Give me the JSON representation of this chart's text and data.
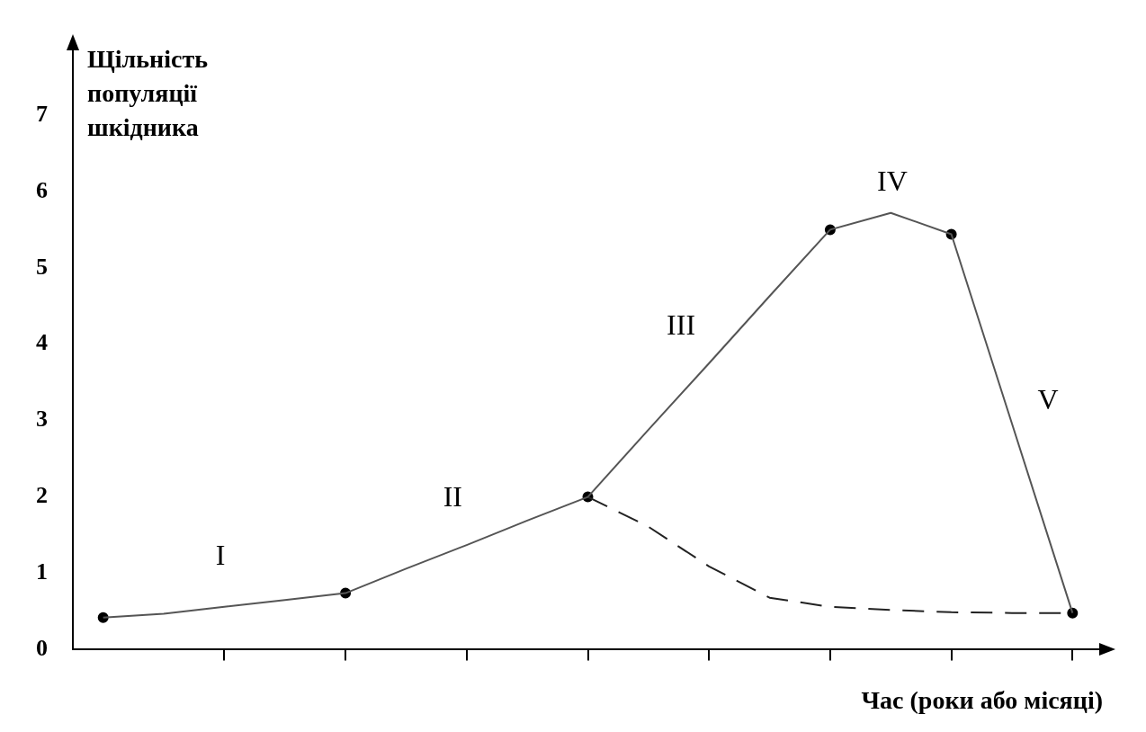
{
  "chart_data": {
    "type": "line",
    "xlabel": "Час (роки або місяці)",
    "ylabel": "Щільність популяції шкідника",
    "categories": [
      null,
      null,
      null,
      null,
      null,
      null,
      null,
      null,
      null,
      null,
      null,
      null,
      null,
      null,
      null,
      null,
      null
    ],
    "ylim": [
      0,
      7.9
    ],
    "yticks": [
      0,
      1,
      2,
      3,
      4,
      5,
      6,
      7
    ],
    "tick_labels": "y",
    "grid": false,
    "legend": false,
    "series": [
      {
        "color": "#555555",
        "line_style": "solid",
        "marker": "none",
        "values": [
          0.42,
          0.47,
          0.56,
          0.65,
          0.74,
          1.06,
          1.37,
          1.69,
          2.0,
          2.88,
          3.75,
          4.63,
          5.5,
          5.72,
          5.44,
          2.96,
          0.48
        ]
      },
      {
        "color": "#222222",
        "line_style": "dashed",
        "marker": "none",
        "values": [
          null,
          null,
          null,
          null,
          null,
          null,
          null,
          null,
          2.0,
          1.61,
          1.09,
          0.68,
          0.56,
          0.52,
          0.49,
          0.48,
          0.48
        ]
      },
      {
        "type": "scatter",
        "color": "#000000",
        "marker": "circle",
        "values": [
          0.42,
          null,
          null,
          null,
          0.74,
          null,
          null,
          null,
          2.0,
          null,
          null,
          null,
          5.5,
          null,
          5.44,
          null,
          0.48
        ]
      }
    ],
    "annotations": [
      "I",
      "II",
      "III",
      "IV",
      "V"
    ]
  }
}
